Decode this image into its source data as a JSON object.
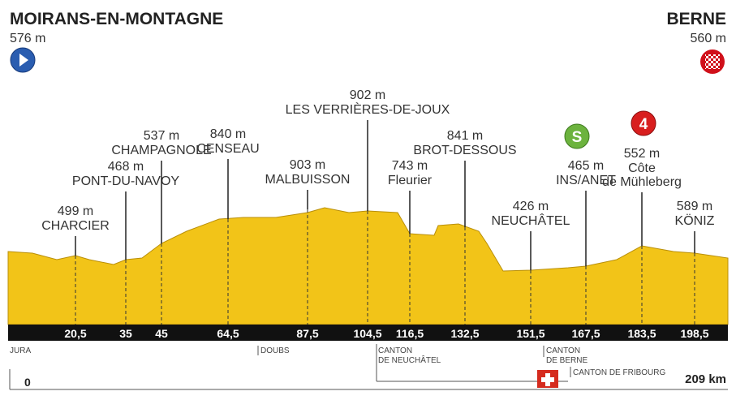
{
  "start": {
    "name": "MOIRANS-EN-MONTAGNE",
    "elevation": "576 m"
  },
  "finish": {
    "name": "BERNE",
    "elevation": "560 m"
  },
  "waypoints": [
    {
      "elevation": "499 m",
      "name": [
        "CHARCIER"
      ],
      "km": "20,5"
    },
    {
      "elevation": "468 m",
      "name": [
        "PONT-DU-NAVOY"
      ],
      "km": "35"
    },
    {
      "elevation": "537 m",
      "name": [
        "CHAMPAGNOLE"
      ],
      "km": "45"
    },
    {
      "elevation": "840 m",
      "name": [
        "CENSEAU"
      ],
      "km": "64,5"
    },
    {
      "elevation": "903 m",
      "name": [
        "MALBUISSON"
      ],
      "km": "87,5"
    },
    {
      "elevation": "902 m",
      "name": [
        "LES VERRIÈRES-DE-JOUX"
      ],
      "km": "104,5"
    },
    {
      "elevation": "743 m",
      "name": [
        "Fleurier"
      ],
      "km": "116,5"
    },
    {
      "elevation": "841 m",
      "name": [
        "BROT-DESSOUS"
      ],
      "km": "132,5"
    },
    {
      "elevation": "426  m",
      "name": [
        "NEUCHÂTEL"
      ],
      "km": "151,5"
    },
    {
      "elevation": "465 m",
      "name": [
        "INS/ANET"
      ],
      "km": "167,5"
    },
    {
      "elevation": "552 m",
      "name": [
        "Côte",
        "de Mühleberg"
      ],
      "km": "183,5"
    },
    {
      "elevation": "589 m",
      "name": [
        "KÖNIZ"
      ],
      "km": "198,5"
    }
  ],
  "sprint_badge": "S",
  "climb_badge": "4",
  "regions": [
    [
      "JURA"
    ],
    [
      "DOUBS"
    ],
    [
      "CANTON",
      "DE NEUCHÂTEL"
    ],
    [
      "CANTON",
      "DE BERNE"
    ],
    [
      "CANTON DE FRIBOURG"
    ]
  ],
  "distance_start": "0",
  "distance_end": "209 km"
}
